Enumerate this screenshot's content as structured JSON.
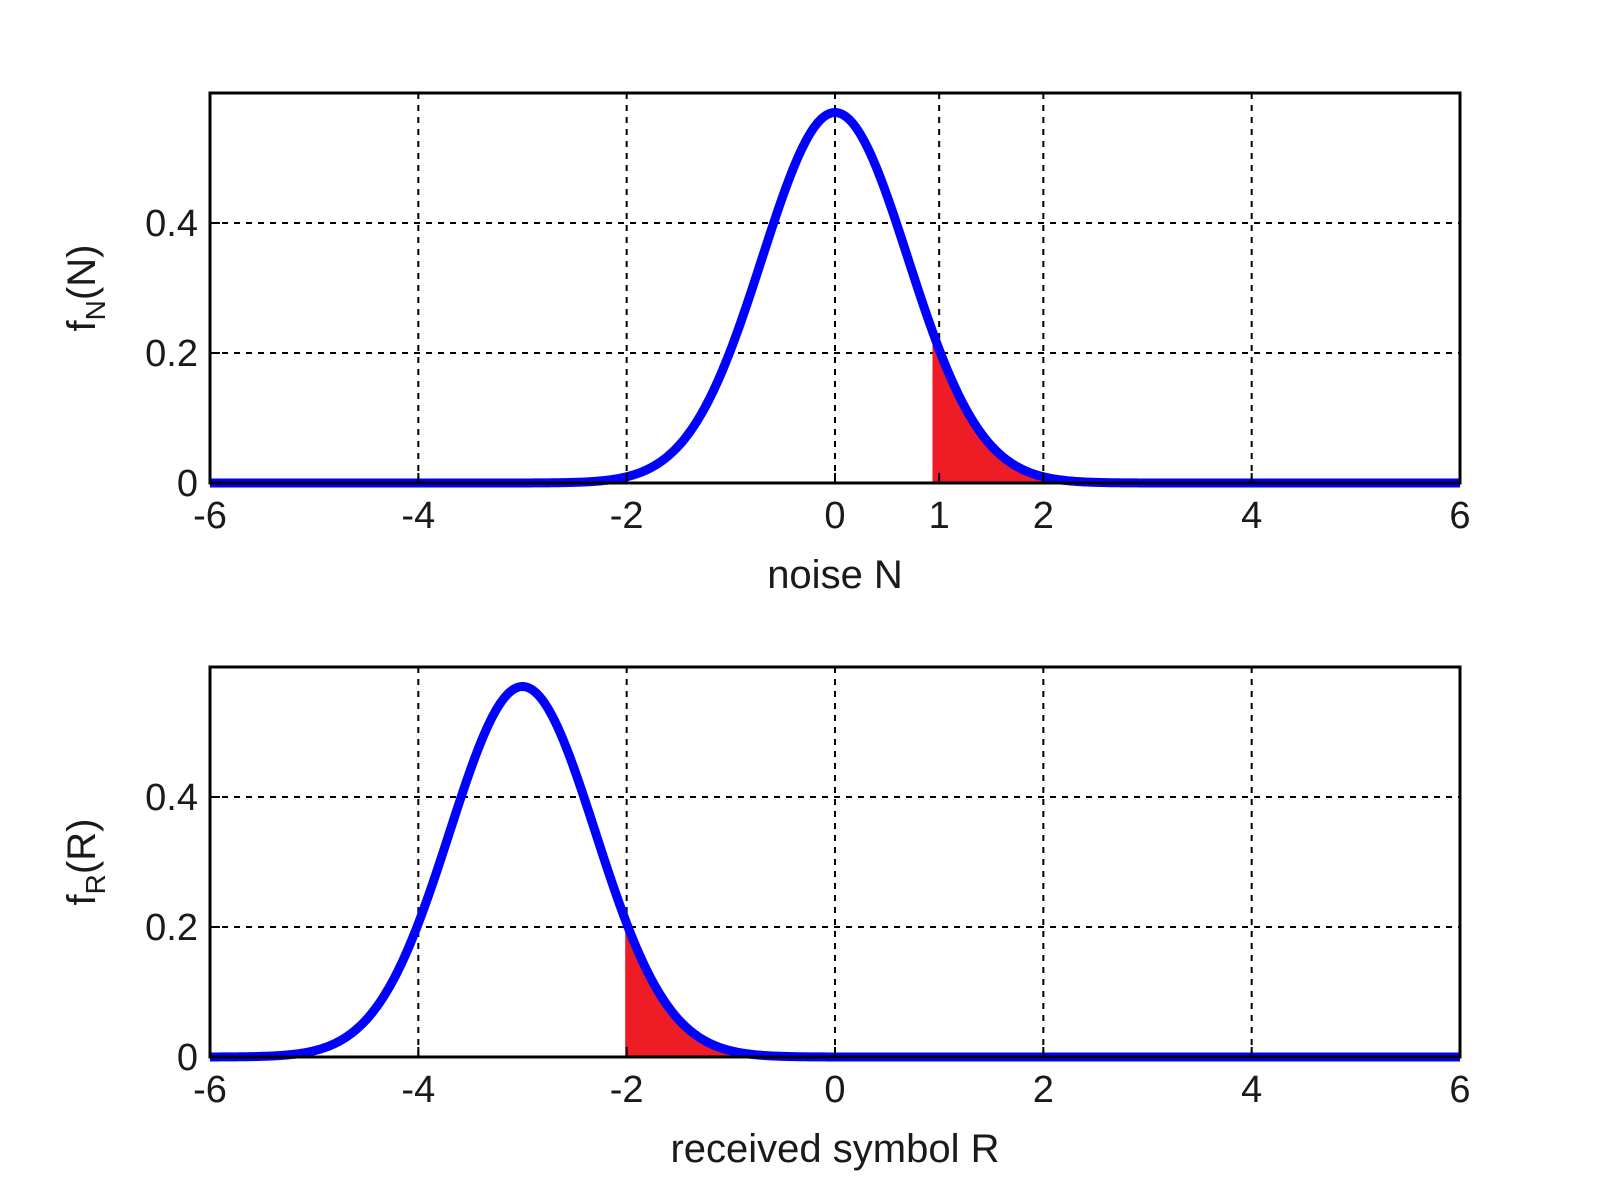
{
  "colors": {
    "curve": "#0000ff",
    "fill": "#ee1c24",
    "axes": "#000000",
    "grid": "#000000",
    "background": "#ffffff"
  },
  "chart_data": [
    {
      "type": "line",
      "xlabel": "noise N",
      "ylabel": {
        "base": "f",
        "sub": "N",
        "arg": "(N)"
      },
      "xlim": [
        -6,
        6
      ],
      "ylim": [
        0,
        0.6
      ],
      "xticks": [
        -6,
        -4,
        -2,
        0,
        1,
        2,
        4,
        6
      ],
      "xtick_labels": [
        "-6",
        "-4",
        "-2",
        "0",
        "1",
        "2",
        "4",
        "6"
      ],
      "yticks": [
        0,
        0.2,
        0.4
      ],
      "ytick_labels": [
        "0",
        "0.2",
        "0.4"
      ],
      "grid": true,
      "series": [
        {
          "kind": "gaussian-pdf",
          "mean": 0,
          "std": 0.7,
          "peak": 0.57,
          "x_range": [
            -6,
            6
          ]
        }
      ],
      "shaded_region": {
        "from": 0.95,
        "to": 2.1
      }
    },
    {
      "type": "line",
      "xlabel": "received symbol R",
      "ylabel": {
        "base": "f",
        "sub": "R",
        "arg": "(R)"
      },
      "xlim": [
        -6,
        6
      ],
      "ylim": [
        0,
        0.6
      ],
      "xticks": [
        -6,
        -4,
        -2,
        0,
        2,
        4,
        6
      ],
      "xtick_labels": [
        "-6",
        "-4",
        "-2",
        "0",
        "2",
        "4",
        "6"
      ],
      "yticks": [
        0,
        0.2,
        0.4
      ],
      "ytick_labels": [
        "0",
        "0.2",
        "0.4"
      ],
      "grid": true,
      "series": [
        {
          "kind": "gaussian-pdf",
          "mean": -3,
          "std": 0.7,
          "peak": 0.57,
          "x_range": [
            -6,
            6
          ]
        }
      ],
      "shaded_region": {
        "from": -2.0,
        "to": -0.9
      }
    }
  ]
}
